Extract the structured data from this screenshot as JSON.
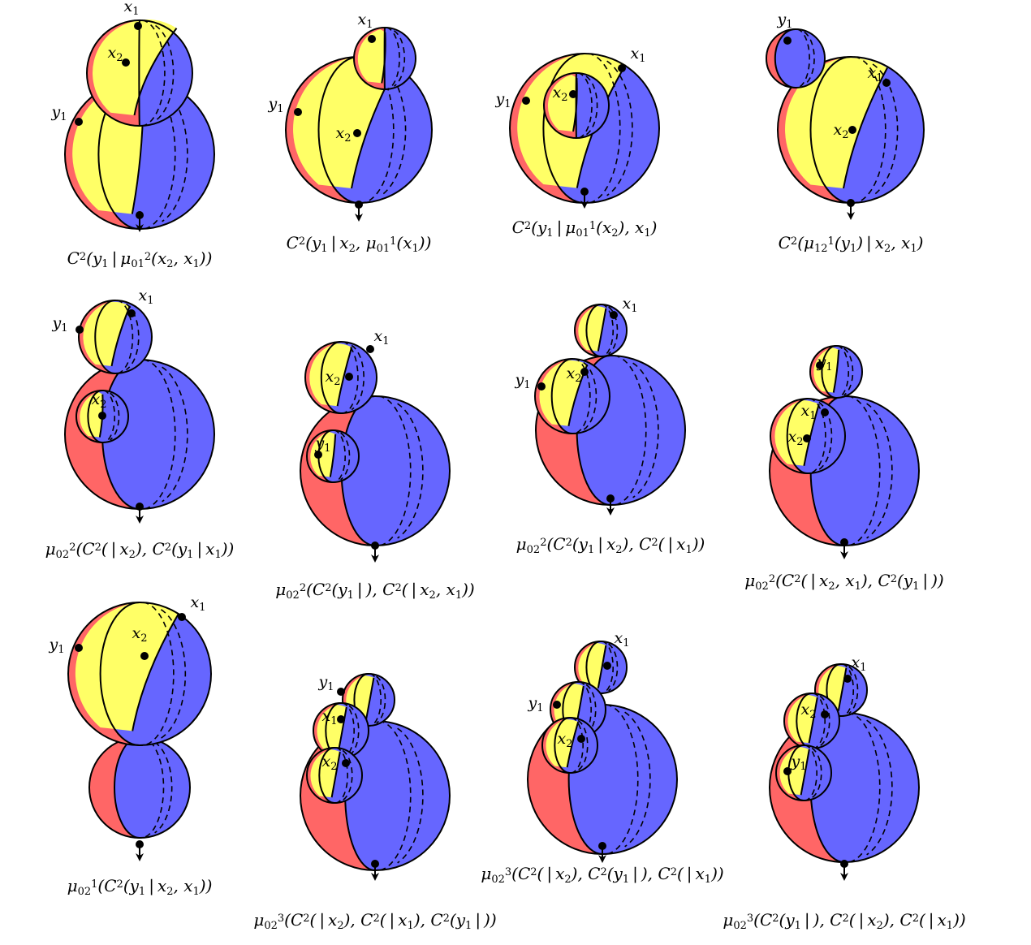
{
  "colors": {
    "red": "#ff6666",
    "yellow": "#ffff66",
    "blue": "#6666ff",
    "stroke": "#000000"
  },
  "figures": [
    {
      "caption": "C^2(y_1 | μ_{01}^2(x_2, x_1))",
      "labels": [
        {
          "text": "x_1"
        },
        {
          "text": "x_2"
        },
        {
          "text": "y_1"
        }
      ]
    },
    {
      "caption": "C^2(y_1 | x_2, μ_{01}^1(x_1))",
      "labels": [
        {
          "text": "x_1"
        },
        {
          "text": "y_1"
        },
        {
          "text": "x_2"
        }
      ]
    },
    {
      "caption": "C^2(y_1 | μ_{01}^1(x_2), x_1)",
      "labels": [
        {
          "text": "x_1"
        },
        {
          "text": "y_1"
        },
        {
          "text": "x_2"
        }
      ]
    },
    {
      "caption": "C^2(μ_{12}^1(y_1) | x_2, x_1)",
      "labels": [
        {
          "text": "y_1"
        },
        {
          "text": "x_1"
        },
        {
          "text": "x_2"
        }
      ]
    },
    {
      "caption": "μ_{02}^2(C^2( | x_2), C^2(y_1 | x_1))",
      "labels": [
        {
          "text": "x_1"
        },
        {
          "text": "y_1"
        },
        {
          "text": "x_2"
        }
      ]
    },
    {
      "caption": "μ_{02}^2(C^2(y_1 | ), C^2( | x_2, x_1))",
      "labels": [
        {
          "text": "x_1"
        },
        {
          "text": "x_2"
        },
        {
          "text": "y_1"
        }
      ]
    },
    {
      "caption": "μ_{02}^2(C^2(y_1 | x_2), C^2( | x_1))",
      "labels": [
        {
          "text": "x_1"
        },
        {
          "text": "y_1"
        },
        {
          "text": "x_2"
        }
      ]
    },
    {
      "caption": "μ_{02}^2(C^2( | x_2, x_1), C^2(y_1 | ))",
      "labels": [
        {
          "text": "y_1"
        },
        {
          "text": "x_1"
        },
        {
          "text": "x_2"
        }
      ]
    },
    {
      "caption": "μ_{02}^1(C^2(y_1 | x_2, x_1))",
      "labels": [
        {
          "text": "x_1"
        },
        {
          "text": "y_1"
        },
        {
          "text": "x_2"
        }
      ]
    },
    {
      "caption": "μ_{02}^3(C^2( | x_2), C^2( | x_1), C^2(y_1 | ))",
      "labels": [
        {
          "text": "y_1"
        },
        {
          "text": "x_1"
        },
        {
          "text": "x_2"
        }
      ]
    },
    {
      "caption": "μ_{02}^3(C^2( | x_2), C^2(y_1 | ), C^2( | x_1))",
      "labels": [
        {
          "text": "x_1"
        },
        {
          "text": "y_1"
        },
        {
          "text": "x_2"
        }
      ]
    },
    {
      "caption": "μ_{02}^3(C^2(y_1 | ), C^2( | x_2), C^2( | x_1))",
      "labels": [
        {
          "text": "x_1"
        },
        {
          "text": "x_2"
        },
        {
          "text": "y_1"
        }
      ]
    }
  ]
}
